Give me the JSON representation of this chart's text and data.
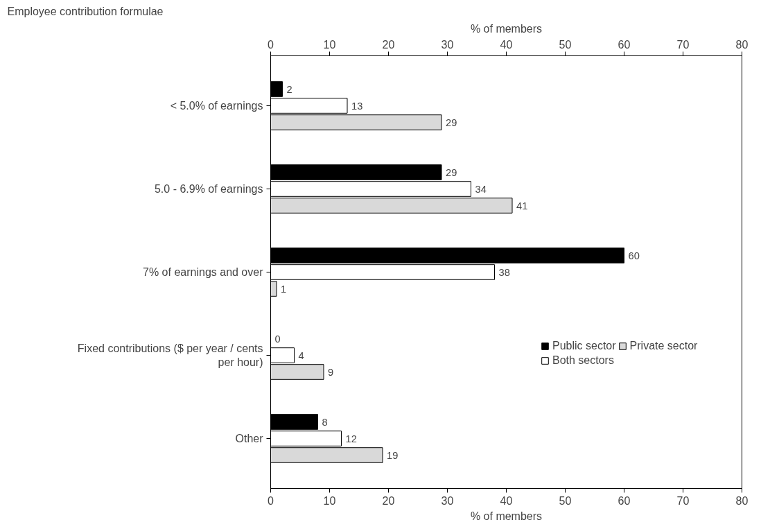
{
  "chart_data": {
    "type": "bar",
    "orientation": "horizontal",
    "categories": [
      "< 5.0% of earnings",
      "5.0 - 6.9% of earnings",
      "7% of earnings and over",
      "Fixed contributions ($ per year / cents per hour)",
      "Other"
    ],
    "series": [
      {
        "name": "Public sector",
        "color": "#000000",
        "values": [
          2,
          29,
          60,
          0,
          8
        ]
      },
      {
        "name": "Both sectors",
        "color": "#ffffff",
        "values": [
          13,
          34,
          38,
          4,
          12
        ]
      },
      {
        "name": "Private sector",
        "color": "#d9d9d9",
        "values": [
          29,
          41,
          1,
          9,
          19
        ]
      }
    ],
    "xlim": [
      0,
      80
    ],
    "xticks": [
      0,
      10,
      20,
      30,
      40,
      50,
      60,
      70,
      80
    ],
    "x2lim": [
      0,
      80
    ],
    "x2ticks": [
      0,
      10,
      20,
      30,
      40,
      50,
      60,
      70,
      80
    ],
    "xlabel": "% of members",
    "x2label": "% of members",
    "annotations": [
      "Employee contribution formulae"
    ],
    "data_labels": true,
    "grid": false,
    "legend": "right"
  }
}
